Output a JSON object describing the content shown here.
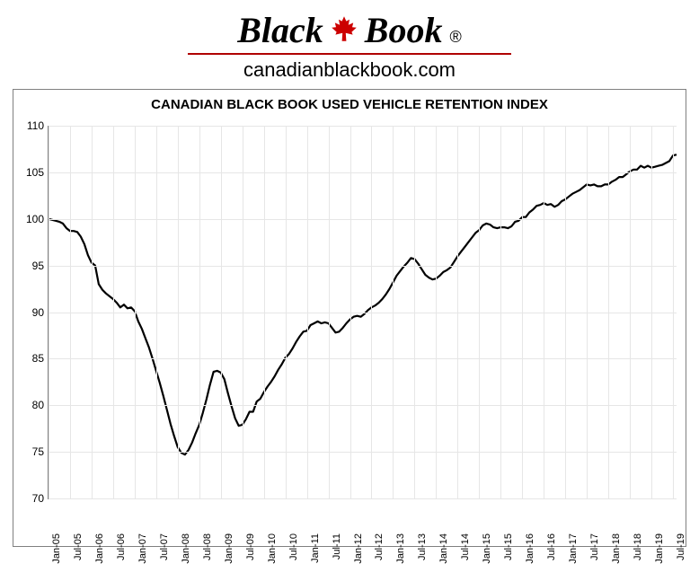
{
  "header": {
    "logo_left": "Black",
    "logo_right": "Book",
    "maple_color": "#cc0000",
    "registered": "®",
    "subtitle": "canadianblackbook.com"
  },
  "chart": {
    "type": "line",
    "title": "CANADIAN BLACK BOOK USED VEHICLE RETENTION INDEX",
    "title_fontsize": 15,
    "title_weight": "bold",
    "background_color": "#ffffff",
    "grid_color": "#e6e6e6",
    "axis_color": "#808080",
    "line_color": "#000000",
    "line_width": 2.2,
    "ylim": [
      70,
      110
    ],
    "ytick_step": 5,
    "x_labels": [
      "Jan-05",
      "Jul-05",
      "Jan-06",
      "Jul-06",
      "Jan-07",
      "Jul-07",
      "Jan-08",
      "Jul-08",
      "Jan-09",
      "Jul-09",
      "Jan-10",
      "Jul-10",
      "Jan-11",
      "Jul-11",
      "Jan-12",
      "Jul-12",
      "Jan-13",
      "Jul-13",
      "Jan-14",
      "Jul-14",
      "Jan-15",
      "Jul-15",
      "Jan-16",
      "Jul-16",
      "Jan-17",
      "Jul-17",
      "Jan-18",
      "Jul-18",
      "Jan-19",
      "Jul-19"
    ],
    "x_label_fontsize": 11,
    "y_label_fontsize": 12,
    "values": [
      100.0,
      99.9,
      99.8,
      99.7,
      99.5,
      99.0,
      98.7,
      98.7,
      98.6,
      98.1,
      97.3,
      96.1,
      95.3,
      95.0,
      93.0,
      92.4,
      92.0,
      91.7,
      91.4,
      91.0,
      90.5,
      90.8,
      90.4,
      90.5,
      90.1,
      89.0,
      88.2,
      87.2,
      86.2,
      85.0,
      83.7,
      82.4,
      81.0,
      79.5,
      78.0,
      76.7,
      75.5,
      74.9,
      74.7,
      75.2,
      76.0,
      77.0,
      77.9,
      79.2,
      80.6,
      82.2,
      83.6,
      83.7,
      83.5,
      82.8,
      81.3,
      79.9,
      78.6,
      77.8,
      77.9,
      78.5,
      79.3,
      79.3,
      80.4,
      80.7,
      81.4,
      82.0,
      82.5,
      83.1,
      83.8,
      84.4,
      85.1,
      85.5,
      86.1,
      86.8,
      87.4,
      87.9,
      88.0,
      88.6,
      88.8,
      89.0,
      88.8,
      88.9,
      88.8,
      88.3,
      87.8,
      87.9,
      88.3,
      88.8,
      89.2,
      89.5,
      89.6,
      89.5,
      89.8,
      90.2,
      90.5,
      90.7,
      91.0,
      91.4,
      91.9,
      92.5,
      93.2,
      93.9,
      94.4,
      94.9,
      95.3,
      95.8,
      95.7,
      95.2,
      94.6,
      94.0,
      93.7,
      93.5,
      93.6,
      93.9,
      94.3,
      94.5,
      94.8,
      95.4,
      96.0,
      96.5,
      97.0,
      97.5,
      98.0,
      98.5,
      98.8,
      99.3,
      99.5,
      99.4,
      99.1,
      99.0,
      99.1,
      99.1,
      99.0,
      99.2,
      99.7,
      99.8,
      100.2,
      100.2,
      100.7,
      101.0,
      101.4,
      101.5,
      101.7,
      101.5,
      101.6,
      101.3,
      101.5,
      101.9,
      102.1,
      102.4,
      102.7,
      102.9,
      103.1,
      103.4,
      103.7,
      103.6,
      103.7,
      103.5,
      103.5,
      103.7,
      103.7,
      104.0,
      104.2,
      104.5,
      104.5,
      104.8,
      105.1,
      105.3,
      105.3,
      105.7,
      105.5,
      105.7,
      105.5,
      105.6,
      105.7,
      105.8,
      106.0,
      106.2,
      106.8,
      106.9
    ]
  }
}
